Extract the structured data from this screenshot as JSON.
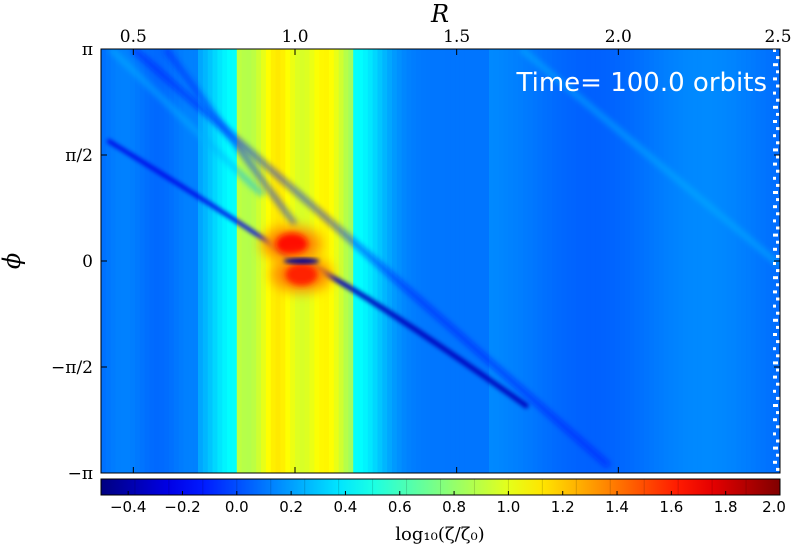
{
  "chart_data": {
    "type": "heatmap",
    "xlabel": "R",
    "ylabel": "ϕ",
    "xlim": [
      0.4,
      2.5
    ],
    "ylim": [
      -3.14159,
      3.14159
    ],
    "x_ticks": [
      {
        "value": 0.5,
        "label": "0.5"
      },
      {
        "value": 1.0,
        "label": "1.0"
      },
      {
        "value": 1.5,
        "label": "1.5"
      },
      {
        "value": 2.0,
        "label": "2.0"
      },
      {
        "value": 2.5,
        "label": "2.5"
      }
    ],
    "y_ticks": [
      {
        "value": 3.14159,
        "label": "π"
      },
      {
        "value": 1.5708,
        "label": "π/2"
      },
      {
        "value": 0,
        "label": "0"
      },
      {
        "value": -1.5708,
        "label": "−π/2"
      },
      {
        "value": -3.14159,
        "label": "−π"
      }
    ],
    "annotation": "Time= 100.0 orbits",
    "colorbar": {
      "label": "log₁₀(ζ/ζ₀)",
      "range": [
        -0.5,
        2.0
      ],
      "colormap": "jet",
      "ticks": [
        {
          "value": -0.4,
          "label": "−0.4"
        },
        {
          "value": -0.2,
          "label": "−0.2"
        },
        {
          "value": 0.0,
          "label": "0.0"
        },
        {
          "value": 0.2,
          "label": "0.2"
        },
        {
          "value": 0.4,
          "label": "0.4"
        },
        {
          "value": 0.6,
          "label": "0.6"
        },
        {
          "value": 0.8,
          "label": "0.8"
        },
        {
          "value": 1.0,
          "label": "1.0"
        },
        {
          "value": 1.2,
          "label": "1.2"
        },
        {
          "value": 1.4,
          "label": "1.4"
        },
        {
          "value": 1.6,
          "label": "1.6"
        },
        {
          "value": 1.8,
          "label": "1.8"
        },
        {
          "value": 2.0,
          "label": "2.0"
        }
      ]
    },
    "field": {
      "background_level": 0.1,
      "ring_center_R": 1.0,
      "ring_halfwidth_R": 0.18,
      "ring_level": 1.05,
      "ring_edge_level": 0.45,
      "hotspot_levels": [
        1.65,
        1.6
      ],
      "spiral_wake_level": -0.35,
      "grid": false
    }
  }
}
